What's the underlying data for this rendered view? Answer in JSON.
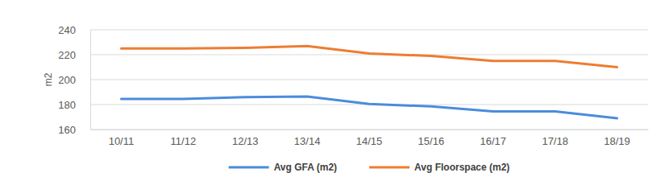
{
  "chart_data": {
    "type": "line",
    "y_label": "m2",
    "categories": [
      "10/11",
      "11/12",
      "12/13",
      "13/14",
      "14/15",
      "15/16",
      "16/17",
      "17/18",
      "18/19"
    ],
    "series": [
      {
        "name": "Avg GFA (m2)",
        "color": "#4a8cdb",
        "values": [
          184.5,
          184.5,
          186,
          186.5,
          180.5,
          178.5,
          174.5,
          174.5,
          169
        ]
      },
      {
        "name": "Avg Floorspace (m2)",
        "color": "#ed7d31",
        "values": [
          225,
          225,
          225.5,
          227,
          221,
          219,
          215,
          215,
          210
        ]
      }
    ],
    "ylim": [
      160,
      240
    ],
    "yticks": [
      160,
      180,
      200,
      220,
      240
    ],
    "grid": true,
    "legend": "bottom"
  }
}
